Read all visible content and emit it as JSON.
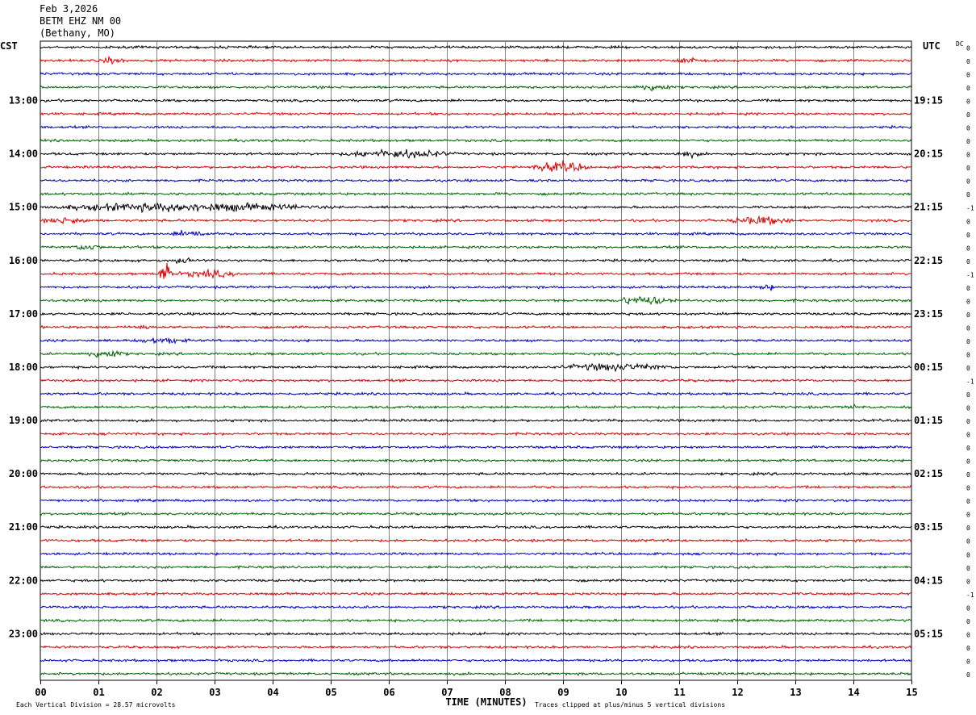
{
  "header": {
    "date": "Feb 3,2026",
    "station": "BETM EHZ NM 00",
    "location": "(Bethany, MO)"
  },
  "labels": {
    "left_timezone": "CST",
    "right_timezone": "UTC",
    "dc_header": "DC",
    "x_axis_title": "TIME (MINUTES)",
    "vertical_division": "Each Vertical Division =   28.57 microvolts",
    "clip_note": "Traces clipped at plus/minus 5 vertical divisions"
  },
  "colors": {
    "trace_cycle": [
      "#000000",
      "#e00000",
      "#0000c0",
      "#006400"
    ],
    "grid": "#808080"
  },
  "chart_data": {
    "type": "line",
    "title": "",
    "xlabel": "TIME (MINUTES)",
    "ylabel": "",
    "xlim": [
      0,
      15
    ],
    "x_ticks": [
      "00",
      "01",
      "02",
      "03",
      "04",
      "05",
      "06",
      "07",
      "08",
      "09",
      "10",
      "11",
      "12",
      "13",
      "14",
      "15"
    ],
    "trace_count": 48,
    "left_hour_labels": [
      "13:00",
      "14:00",
      "15:00",
      "16:00",
      "17:00",
      "18:00",
      "19:00",
      "20:00",
      "21:00",
      "22:00",
      "23:00"
    ],
    "right_hour_labels": [
      "19:15",
      "20:15",
      "21:15",
      "22:15",
      "23:15",
      "00:15",
      "01:15",
      "02:15",
      "03:15",
      "04:15",
      "05:15"
    ],
    "dc_offsets": [
      "0",
      "0",
      "0",
      "0",
      "0",
      "0",
      "0",
      "0",
      "0",
      "0",
      "0",
      "0",
      "-1",
      "0",
      "0",
      "0",
      "0",
      "-1",
      "0",
      "0",
      "0",
      "0",
      "0",
      "0",
      "0",
      "-1",
      "0",
      "0",
      "0",
      "0",
      "0",
      "0",
      "0",
      "0",
      "0",
      "0",
      "0",
      "0",
      "0",
      "0",
      "0",
      "-1",
      "0",
      "0",
      "0",
      "0",
      "0",
      "0"
    ],
    "events": [
      {
        "trace": 1,
        "start_min": 10.9,
        "end_min": 11.3,
        "amp": 1.4
      },
      {
        "trace": 1,
        "start_min": 1.0,
        "end_min": 1.5,
        "amp": 0.9
      },
      {
        "trace": 3,
        "start_min": 10.2,
        "end_min": 10.9,
        "amp": 1.1
      },
      {
        "trace": 8,
        "start_min": 5.1,
        "end_min": 7.2,
        "amp": 1.2
      },
      {
        "trace": 8,
        "start_min": 10.9,
        "end_min": 11.4,
        "amp": 0.8
      },
      {
        "trace": 9,
        "start_min": 8.4,
        "end_min": 9.5,
        "amp": 1.6
      },
      {
        "trace": 12,
        "start_min": 0.0,
        "end_min": 5.0,
        "amp": 1.3
      },
      {
        "trace": 13,
        "start_min": 11.8,
        "end_min": 13.0,
        "amp": 1.2
      },
      {
        "trace": 13,
        "start_min": 0.0,
        "end_min": 0.9,
        "amp": 0.9
      },
      {
        "trace": 14,
        "start_min": 2.2,
        "end_min": 3.0,
        "amp": 1.0
      },
      {
        "trace": 15,
        "start_min": 0.5,
        "end_min": 1.1,
        "amp": 0.9
      },
      {
        "trace": 16,
        "start_min": 2.3,
        "end_min": 2.6,
        "amp": 1.0
      },
      {
        "trace": 17,
        "start_min": 2.0,
        "end_min": 2.3,
        "amp": 4.0
      },
      {
        "trace": 17,
        "start_min": 2.3,
        "end_min": 3.5,
        "amp": 1.0
      },
      {
        "trace": 18,
        "start_min": 12.3,
        "end_min": 12.7,
        "amp": 0.8
      },
      {
        "trace": 19,
        "start_min": 9.8,
        "end_min": 11.0,
        "amp": 1.4
      },
      {
        "trace": 21,
        "start_min": 1.6,
        "end_min": 1.9,
        "amp": 0.8
      },
      {
        "trace": 22,
        "start_min": 1.6,
        "end_min": 2.6,
        "amp": 0.8
      },
      {
        "trace": 23,
        "start_min": 0.7,
        "end_min": 1.5,
        "amp": 1.2
      },
      {
        "trace": 24,
        "start_min": 8.8,
        "end_min": 11.0,
        "amp": 1.0
      },
      {
        "trace": 27,
        "start_min": 13.9,
        "end_min": 14.1,
        "amp": 0.8
      }
    ]
  }
}
